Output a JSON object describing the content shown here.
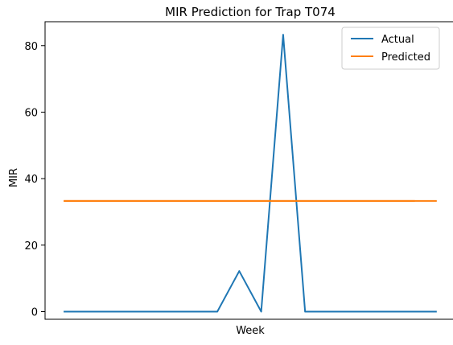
{
  "chart_data": {
    "type": "line",
    "title": "MIR Prediction for Trap T074",
    "xlabel": "Week",
    "ylabel": "MIR",
    "x": [
      0,
      1,
      2,
      3,
      4,
      5,
      6,
      7,
      8,
      9,
      10,
      11,
      12,
      13,
      14,
      15,
      16,
      17
    ],
    "ylim": [
      -2.3,
      87.2
    ],
    "yticks": [
      0,
      20,
      40,
      60,
      80
    ],
    "show_xticks": false,
    "grid": false,
    "legend_position": "top-right",
    "series": [
      {
        "name": "Actual",
        "color": "#1f77b4",
        "values": [
          0,
          0,
          0,
          0,
          0,
          0,
          0,
          0,
          12.2,
          0,
          83.3,
          0,
          0,
          0,
          0,
          0,
          0,
          0
        ],
        "segments": [
          [
            0,
            7
          ],
          [
            0,
            17
          ]
        ]
      },
      {
        "name": "Predicted",
        "color": "#ff7f0e",
        "values": [
          33.3,
          33.3,
          33.3,
          33.3,
          33.3,
          33.3,
          33.3,
          33.3,
          33.3,
          33.3,
          33.3,
          33.3,
          33.3,
          33.3,
          33.3,
          33.3,
          33.3,
          33.3
        ],
        "segments": [
          [
            0,
            17
          ],
          [
            0,
            16
          ]
        ]
      }
    ]
  }
}
